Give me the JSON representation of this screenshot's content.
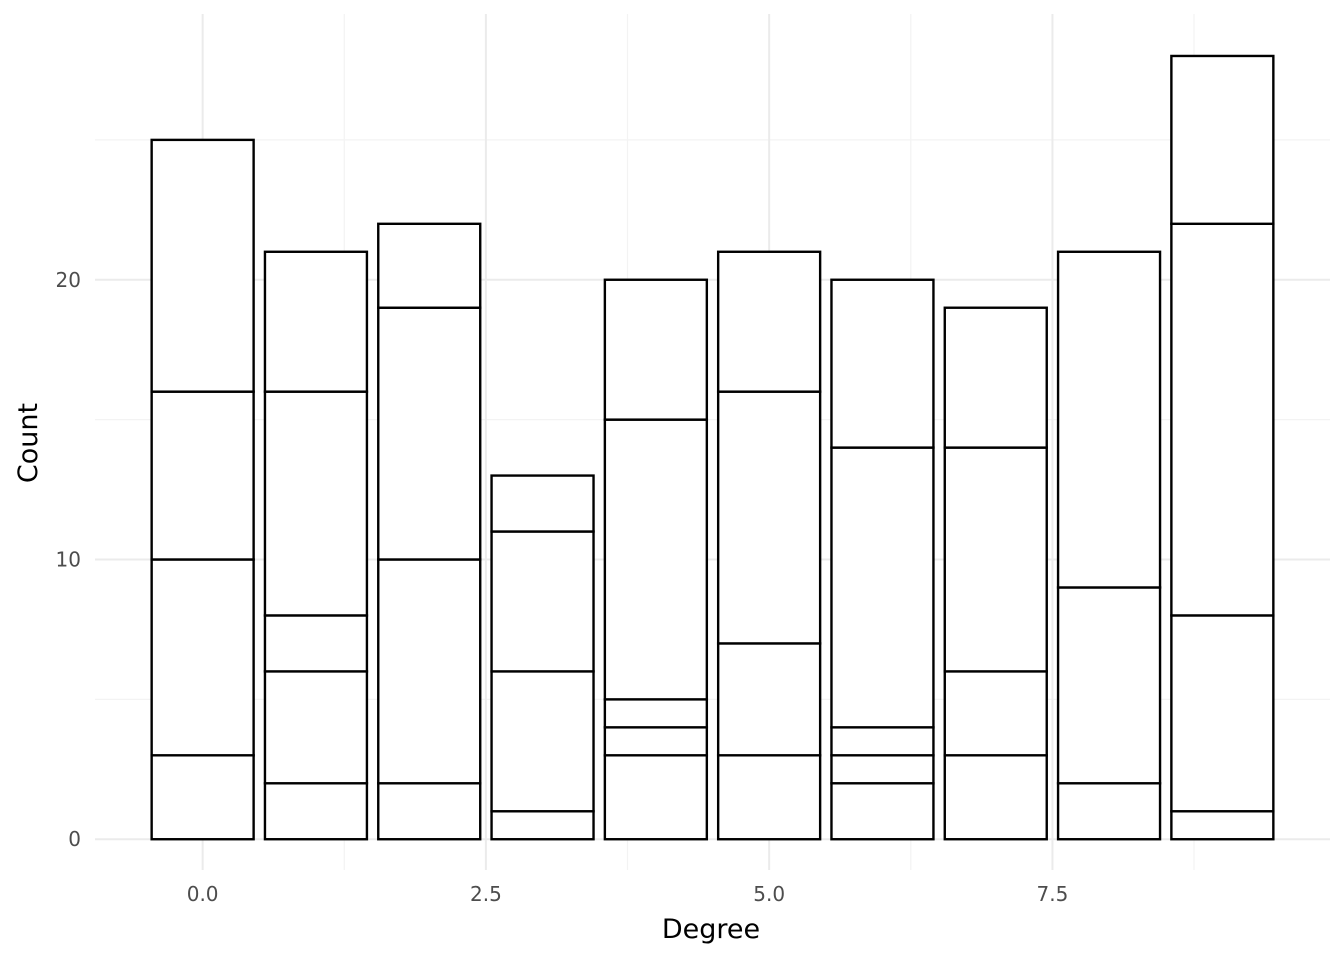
{
  "chart_data": {
    "type": "bar",
    "stacked": true,
    "title": "",
    "xlabel": "Degree",
    "ylabel": "Count",
    "x": [
      0,
      1,
      2,
      3,
      4,
      5,
      6,
      7,
      8,
      9
    ],
    "xlim": [
      -0.95,
      9.95
    ],
    "ylim": [
      -1.1,
      29.5
    ],
    "x_ticks": [
      0.0,
      2.5,
      5.0,
      7.5
    ],
    "x_tick_labels": [
      "0.0",
      "2.5",
      "5.0",
      "7.5"
    ],
    "y_ticks": [
      0,
      10,
      20
    ],
    "y_tick_labels": [
      "0",
      "10",
      "20"
    ],
    "grid": true,
    "legend": "none",
    "bar_fill": "#ffffff",
    "bar_outline": "#000000",
    "stack_boundaries": [
      [
        3,
        10,
        16,
        25
      ],
      [
        2,
        6,
        8,
        16,
        21
      ],
      [
        2,
        10,
        19,
        22
      ],
      [
        1,
        6,
        11,
        13
      ],
      [
        3,
        4,
        5,
        15,
        20
      ],
      [
        3,
        7,
        16,
        21
      ],
      [
        2,
        3,
        4,
        14,
        20
      ],
      [
        3,
        6,
        14,
        19
      ],
      [
        2,
        9,
        21
      ],
      [
        1,
        8,
        22,
        28
      ]
    ],
    "totals": [
      25,
      21,
      22,
      13,
      20,
      21,
      20,
      19,
      21,
      28
    ]
  }
}
